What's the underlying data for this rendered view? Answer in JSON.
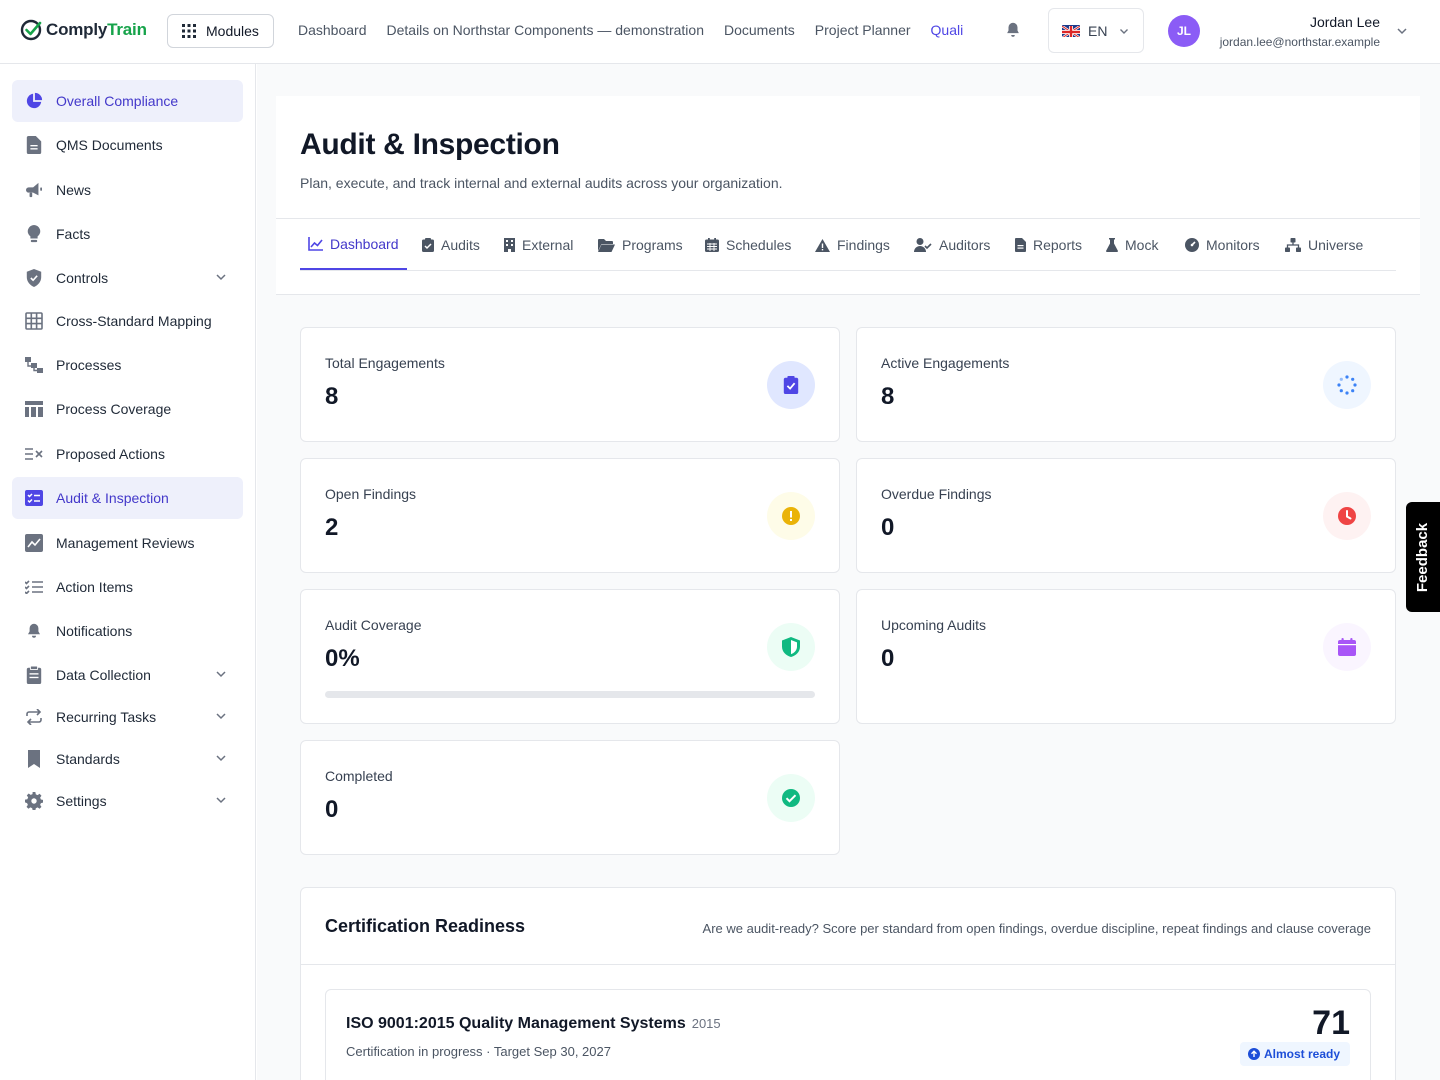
{
  "brand": {
    "name_part1": "Comply",
    "name_part2": "Train"
  },
  "topbar": {
    "modules_label": "Modules",
    "nav": [
      "Dashboard",
      "Details on Northstar Components — demonstration",
      "Documents",
      "Project Planner",
      "Quali"
    ],
    "language": "EN",
    "user": {
      "initials": "JL",
      "name": "Jordan Lee",
      "email": "jordan.lee@northstar.example"
    }
  },
  "sidebar": {
    "items": [
      {
        "label": "Overall Compliance",
        "icon": "pie-chart-icon",
        "active": true
      },
      {
        "label": "QMS Documents",
        "icon": "document-icon"
      },
      {
        "label": "News",
        "icon": "megaphone-icon"
      },
      {
        "label": "Facts",
        "icon": "lightbulb-icon"
      },
      {
        "label": "Controls",
        "icon": "shield-check-icon",
        "expandable": true
      },
      {
        "label": "Cross-Standard Mapping",
        "icon": "grid-icon"
      },
      {
        "label": "Processes",
        "icon": "flow-icon"
      },
      {
        "label": "Process Coverage",
        "icon": "table-icon"
      },
      {
        "label": "Proposed Actions",
        "icon": "list-x-icon"
      },
      {
        "label": "Audit & Inspection",
        "icon": "checklist-icon",
        "active": true
      },
      {
        "label": "Management Reviews",
        "icon": "chart-edit-icon"
      },
      {
        "label": "Action Items",
        "icon": "list-check-icon"
      },
      {
        "label": "Notifications",
        "icon": "bell-icon"
      },
      {
        "label": "Data Collection",
        "icon": "clipboard-icon",
        "expandable": true
      },
      {
        "label": "Recurring Tasks",
        "icon": "repeat-icon",
        "expandable": true
      },
      {
        "label": "Standards",
        "icon": "bookmark-icon",
        "expandable": true
      },
      {
        "label": "Settings",
        "icon": "gear-icon",
        "expandable": true
      }
    ]
  },
  "page": {
    "title": "Audit & Inspection",
    "subtitle": "Plan, execute, and track internal and external audits across your organization.",
    "tabs": [
      "Dashboard",
      "Audits",
      "External",
      "Programs",
      "Schedules",
      "Findings",
      "Auditors",
      "Reports",
      "Mock",
      "Monitors",
      "Universe"
    ],
    "active_tab": "Dashboard"
  },
  "stats": [
    {
      "label": "Total Engagements",
      "value": "8",
      "icon": "clipboard-check-icon",
      "color": "#4f46e5"
    },
    {
      "label": "Active Engagements",
      "value": "8",
      "icon": "spinner-icon",
      "color": "#3b82f6"
    },
    {
      "label": "Open Findings",
      "value": "2",
      "icon": "warning-circle-icon",
      "color": "#eab308"
    },
    {
      "label": "Overdue Findings",
      "value": "0",
      "icon": "clock-icon",
      "color": "#ef4444"
    },
    {
      "label": "Audit Coverage",
      "value": "0%",
      "icon": "shield-half-icon",
      "color": "#10b981",
      "progress": 0
    },
    {
      "label": "Upcoming Audits",
      "value": "0",
      "icon": "calendar-icon",
      "color": "#a855f7"
    },
    {
      "label": "Completed",
      "value": "0",
      "icon": "check-circle-icon",
      "color": "#10b981"
    }
  ],
  "certification": {
    "title": "Certification Readiness",
    "description": "Are we audit-ready? Score per standard from open findings, overdue discipline, repeat findings and clause coverage",
    "standards": [
      {
        "name": "ISO 9001:2015 Quality Management Systems",
        "year": "2015",
        "meta": "Certification in progress · Target Sep 30, 2027",
        "score": "71",
        "status": "Almost ready"
      }
    ]
  },
  "feedback_label": "Feedback"
}
